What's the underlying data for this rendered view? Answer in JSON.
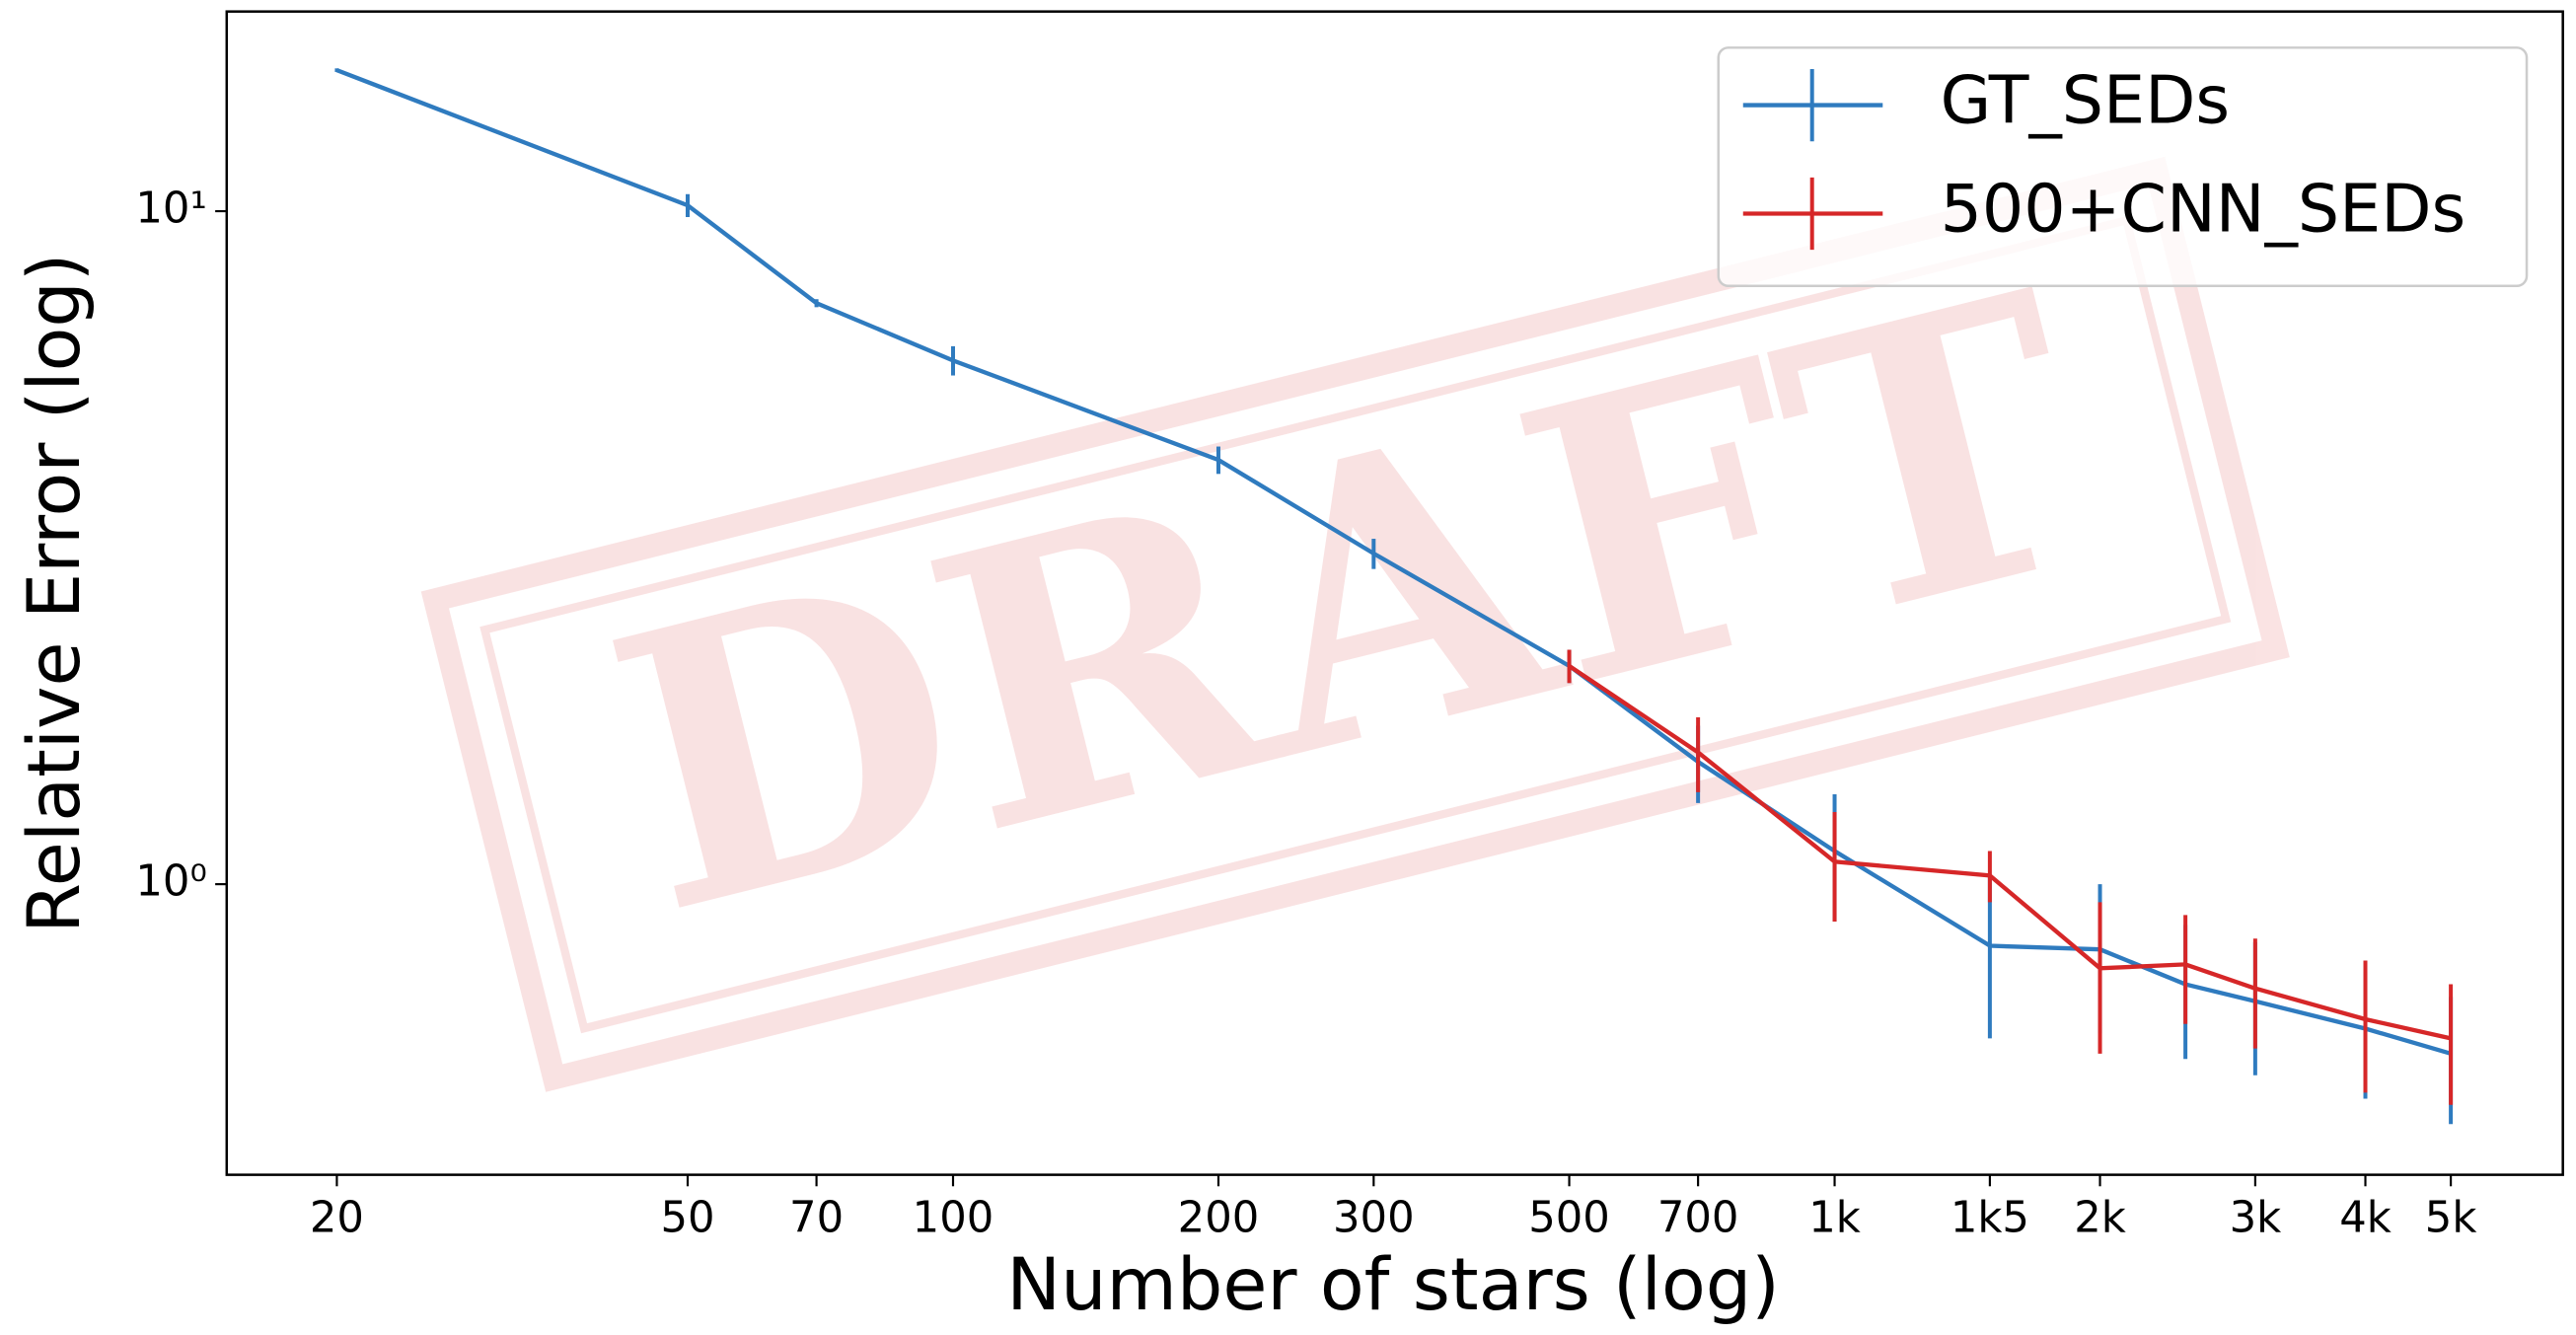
{
  "chart_data": {
    "type": "line",
    "xlabel": "Number of stars (log)",
    "ylabel": "Relative Error (log)",
    "watermark": "DRAFT",
    "x": [
      20,
      50,
      70,
      100,
      200,
      300,
      500,
      700,
      1000,
      1500,
      2000,
      2500,
      3000,
      4000,
      5000
    ],
    "series": [
      {
        "name": "GT_SEDs",
        "color": "#2f7bbf",
        "values": [
          16.2,
          10.2,
          7.3,
          6.0,
          4.27,
          3.1,
          2.11,
          1.52,
          1.12,
          0.81,
          0.8,
          0.71,
          0.67,
          0.61,
          0.56
        ],
        "errors": [
          0.1,
          0.4,
          0.1,
          0.3,
          0.2,
          0.16,
          0.12,
          0.2,
          0.24,
          0.22,
          0.2,
          0.16,
          0.15,
          0.13,
          0.12
        ]
      },
      {
        "name": "500+CNN_SEDs",
        "color": "#d62728",
        "values": [
          null,
          null,
          null,
          null,
          null,
          null,
          2.11,
          1.57,
          1.08,
          1.03,
          0.75,
          0.76,
          0.7,
          0.63,
          0.59
        ],
        "errors": [
          null,
          null,
          null,
          null,
          null,
          null,
          0.12,
          0.2,
          0.2,
          0.09,
          0.19,
          0.14,
          0.13,
          0.14,
          0.12
        ]
      }
    ],
    "xscale": "log",
    "yscale": "log",
    "xlim": [
      15,
      6700
    ],
    "ylim": [
      0.37,
      19.8
    ],
    "xticks": [
      20,
      50,
      70,
      100,
      200,
      300,
      500,
      700,
      {
        "value": 1000,
        "label": "1k"
      },
      {
        "value": 1500,
        "label": "1k5"
      },
      {
        "value": 2000,
        "label": "2k"
      },
      {
        "value": 3000,
        "label": "3k"
      },
      {
        "value": 4000,
        "label": "4k"
      },
      {
        "value": 5000,
        "label": "5k"
      }
    ],
    "yticks": [
      {
        "value": 1,
        "label": "10⁰"
      },
      {
        "value": 10,
        "label": "10¹"
      }
    ],
    "legend": "upper right"
  }
}
